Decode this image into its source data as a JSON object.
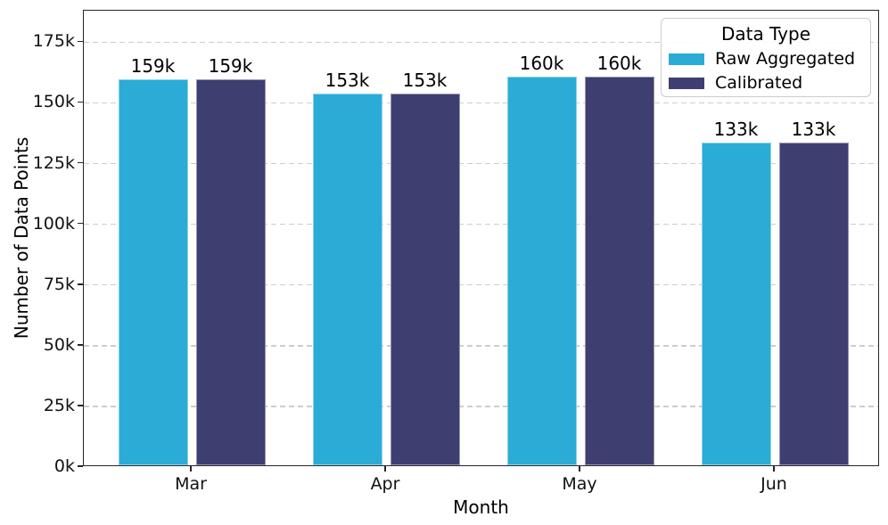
{
  "figure": {
    "background": "#ffffff",
    "spine_color": "#262626",
    "grid_color": "#cdcdcd",
    "text_color": "#000000"
  },
  "chart_data": {
    "type": "bar",
    "title": "",
    "xlabel": "Month",
    "ylabel": "Number of Data Points",
    "categories": [
      "Mar",
      "Apr",
      "May",
      "Jun"
    ],
    "series": [
      {
        "name": "Raw Aggregated",
        "color": "#2BACD6",
        "values": [
          159000,
          153000,
          160000,
          133000
        ],
        "value_labels": [
          "159k",
          "153k",
          "160k",
          "133k"
        ]
      },
      {
        "name": "Calibrated",
        "color": "#3E3F70",
        "values": [
          159000,
          153000,
          160000,
          133000
        ],
        "value_labels": [
          "159k",
          "153k",
          "160k",
          "133k"
        ]
      }
    ],
    "ylim": [
      0,
      188000
    ],
    "yticks": [
      {
        "value": 0,
        "label": "0k"
      },
      {
        "value": 25000,
        "label": "25k"
      },
      {
        "value": 50000,
        "label": "50k"
      },
      {
        "value": 75000,
        "label": "75k"
      },
      {
        "value": 100000,
        "label": "100k"
      },
      {
        "value": 125000,
        "label": "125k"
      },
      {
        "value": 150000,
        "label": "150k"
      },
      {
        "value": 175000,
        "label": "175k"
      }
    ],
    "grid": {
      "axis": "y",
      "style": "dashed",
      "on": true
    },
    "legend": {
      "title": "Data Type",
      "position": "upper right"
    }
  }
}
